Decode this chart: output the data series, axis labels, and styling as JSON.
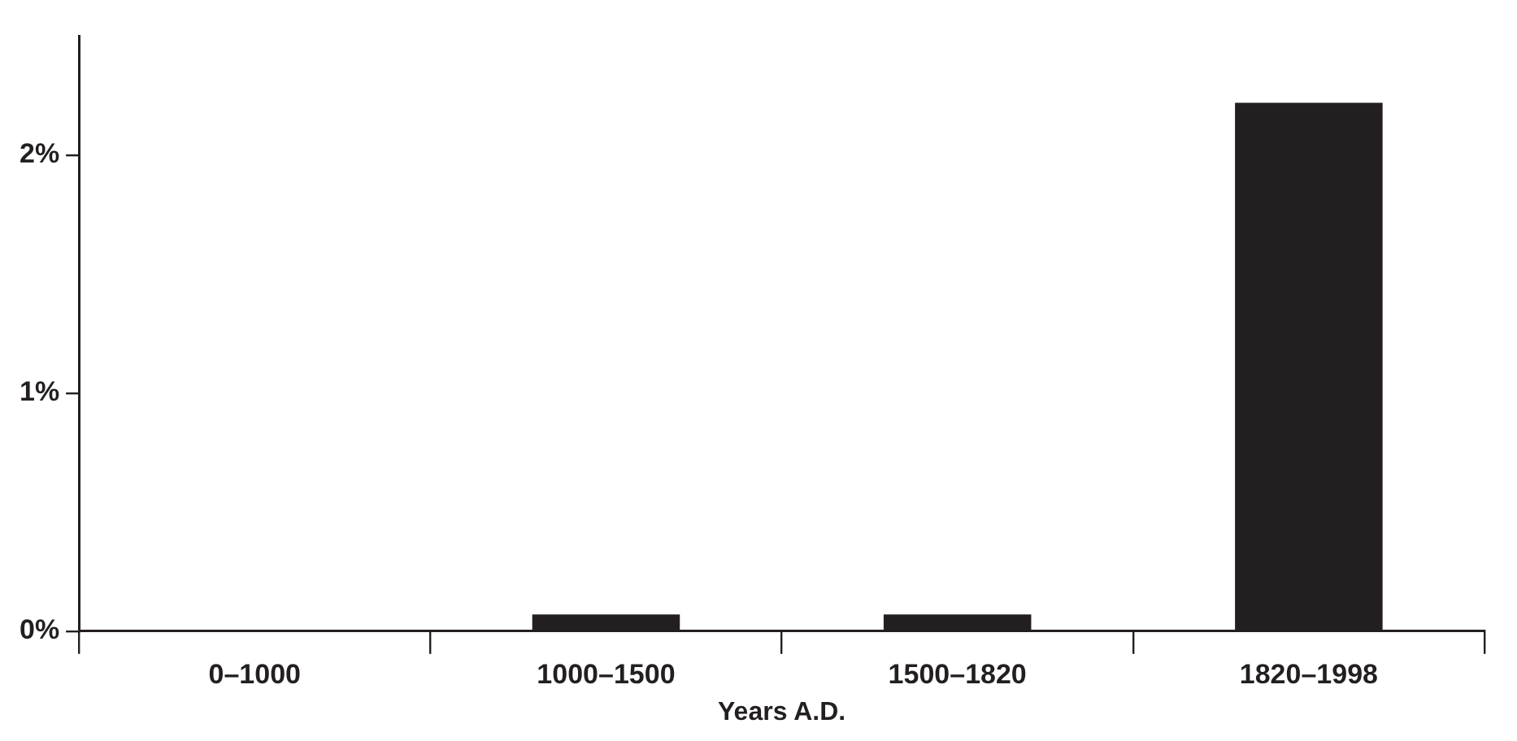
{
  "chart_data": {
    "type": "bar",
    "xlabel": "Years A.D.",
    "categories": [
      "0–1000",
      "1000–1500",
      "1500–1820",
      "1820–1998"
    ],
    "values": [
      0,
      0.07,
      0.07,
      2.22
    ],
    "color": "#231f20",
    "ylim": [
      0,
      2.5
    ],
    "yticks": [
      {
        "value": 0,
        "label": "0%"
      },
      {
        "value": 1,
        "label": "1%"
      },
      {
        "value": 2,
        "label": "2%"
      }
    ],
    "grid": false,
    "legend": false
  }
}
